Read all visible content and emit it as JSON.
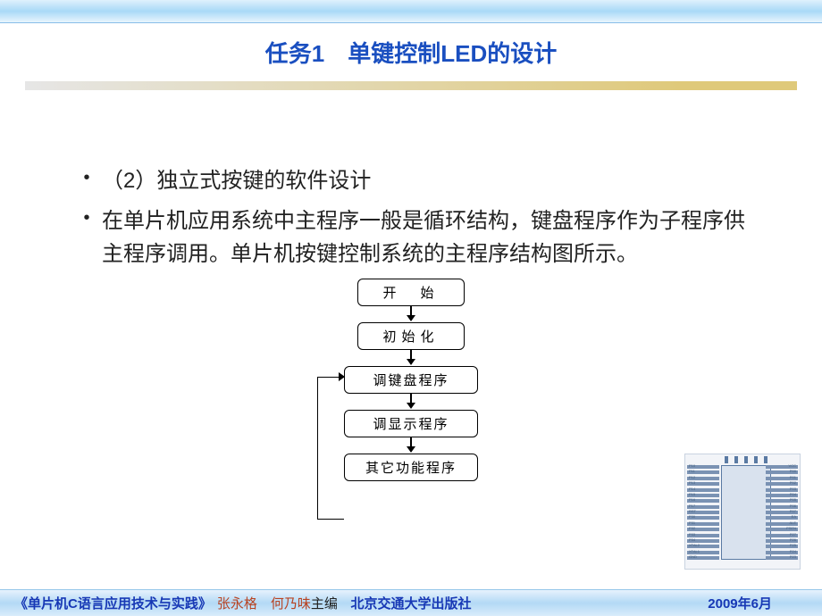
{
  "title": "任务1　单键控制LED的设计",
  "bullets": [
    "（2）独立式按键的软件设计",
    "在单片机应用系统中主程序一般是循环结构，键盘程序作为子程序供主程序调用。单片机按键控制系统的主程序结构图所示。"
  ],
  "flowchart": {
    "nodes": [
      {
        "label": "开　始",
        "wide": false
      },
      {
        "label": "初始化",
        "wide": false
      },
      {
        "label": "调键盘程序",
        "wide": true
      },
      {
        "label": "调显示程序",
        "wide": true
      },
      {
        "label": "其它功能程序",
        "wide": true
      }
    ],
    "box_border": "#000000",
    "box_bg": "#ffffff",
    "font_size": 15
  },
  "footer": {
    "book": "《单片机C语言应用技术与实践》",
    "authors": "张永格　何乃味",
    "editor_suffix": "主编",
    "publisher": "北京交通大学出版社",
    "date": "2009年6月"
  },
  "colors": {
    "title": "#1a4fc0",
    "top_grad_from": "#dff1fd",
    "top_grad_mid": "#a9d9f7",
    "divider_left": "#e6e6e6",
    "divider_right": "#dfc97a",
    "footer_text": "#1738b5",
    "author_text": "#b84322"
  }
}
